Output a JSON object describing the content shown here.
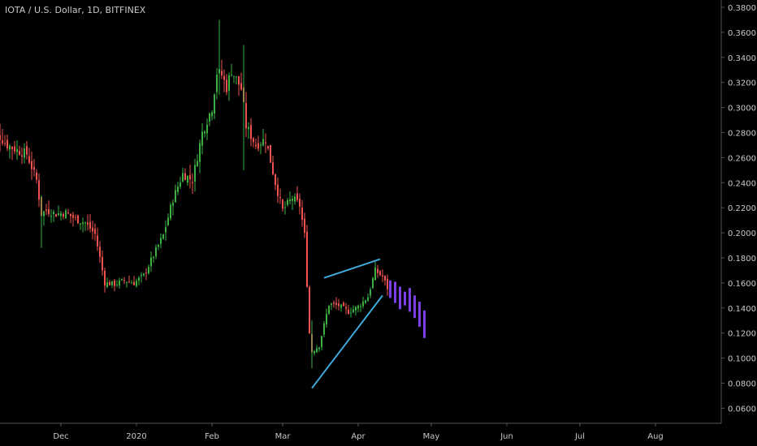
{
  "header": {
    "symbol_title": "IOTA / U.S. Dollar, 1D, BITFINEX"
  },
  "colors": {
    "background": "#000000",
    "up_candle": "#26a69a",
    "up_candle_wick": "#3cb043",
    "down_candle": "#ef5350",
    "projection": "#7b3fe4",
    "trendline": "#3fa9dc",
    "axis_text": "#c8c8c8",
    "axis_line": "#555555"
  },
  "chart_data": {
    "type": "candlestick",
    "x_ticks": [
      "Dec",
      "2020",
      "Feb",
      "Mar",
      "Apr",
      "May",
      "Jun",
      "Jul",
      "Aug"
    ],
    "y_ticks": [
      "0.3800",
      "0.3600",
      "0.3400",
      "0.3200",
      "0.3000",
      "0.2800",
      "0.2600",
      "0.2400",
      "0.2200",
      "0.2000",
      "0.1800",
      "0.1600",
      "0.1400",
      "0.1200",
      "0.1000",
      "0.0800",
      "0.0600"
    ],
    "ylim": [
      0.052,
      0.382
    ],
    "x_range": [
      "2019-11-01",
      "2020-08-31"
    ],
    "grid": false,
    "daily_close": [
      [
        "2019-11-01",
        0.276
      ],
      [
        "2019-11-05",
        0.279
      ],
      [
        "2019-11-09",
        0.27
      ],
      [
        "2019-11-13",
        0.266
      ],
      [
        "2019-11-17",
        0.263
      ],
      [
        "2019-11-21",
        0.242
      ],
      [
        "2019-11-23",
        0.215
      ],
      [
        "2019-11-25",
        0.218
      ],
      [
        "2019-11-29",
        0.215
      ],
      [
        "2019-12-03",
        0.216
      ],
      [
        "2019-12-07",
        0.211
      ],
      [
        "2019-12-11",
        0.208
      ],
      [
        "2019-12-15",
        0.199
      ],
      [
        "2019-12-17",
        0.18
      ],
      [
        "2019-12-19",
        0.16
      ],
      [
        "2019-12-23",
        0.159
      ],
      [
        "2019-12-27",
        0.162
      ],
      [
        "2019-12-31",
        0.16
      ],
      [
        "2020-01-04",
        0.166
      ],
      [
        "2020-01-08",
        0.182
      ],
      [
        "2020-01-12",
        0.198
      ],
      [
        "2020-01-16",
        0.227
      ],
      [
        "2020-01-20",
        0.247
      ],
      [
        "2020-01-24",
        0.242
      ],
      [
        "2020-01-28",
        0.28
      ],
      [
        "2020-02-01",
        0.3
      ],
      [
        "2020-02-03",
        0.328
      ],
      [
        "2020-02-05",
        0.326
      ],
      [
        "2020-02-07",
        0.316
      ],
      [
        "2020-02-09",
        0.33
      ],
      [
        "2020-02-13",
        0.315
      ],
      [
        "2020-02-15",
        0.285
      ],
      [
        "2020-02-19",
        0.27
      ],
      [
        "2020-02-23",
        0.275
      ],
      [
        "2020-02-27",
        0.24
      ],
      [
        "2020-03-01",
        0.218
      ],
      [
        "2020-03-05",
        0.228
      ],
      [
        "2020-03-08",
        0.222
      ],
      [
        "2020-03-10",
        0.198
      ],
      [
        "2020-03-12",
        0.12
      ],
      [
        "2020-03-13",
        0.105
      ],
      [
        "2020-03-16",
        0.11
      ],
      [
        "2020-03-20",
        0.143
      ],
      [
        "2020-03-24",
        0.142
      ],
      [
        "2020-03-28",
        0.137
      ],
      [
        "2020-04-01",
        0.141
      ],
      [
        "2020-04-05",
        0.149
      ],
      [
        "2020-04-08",
        0.17
      ],
      [
        "2020-04-11",
        0.165
      ],
      [
        "2020-04-13",
        0.156
      ]
    ],
    "projection_close": [
      [
        "2020-04-14",
        0.154
      ],
      [
        "2020-04-16",
        0.15
      ],
      [
        "2020-04-18",
        0.145
      ],
      [
        "2020-04-20",
        0.149
      ],
      [
        "2020-04-22",
        0.143
      ],
      [
        "2020-04-24",
        0.138
      ],
      [
        "2020-04-26",
        0.131
      ],
      [
        "2020-04-28",
        0.122
      ],
      [
        "2020-04-29",
        0.119
      ]
    ],
    "trendlines": [
      {
        "from": [
          "2020-03-13",
          0.076
        ],
        "to": [
          "2020-04-11",
          0.15
        ]
      },
      {
        "from": [
          "2020-03-18",
          0.164
        ],
        "to": [
          "2020-04-10",
          0.179
        ]
      }
    ]
  }
}
